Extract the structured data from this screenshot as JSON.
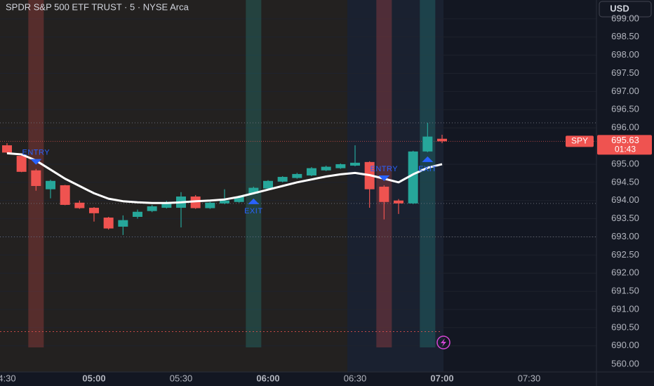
{
  "chart_data": {
    "type": "candlestick",
    "title": "SPDR S&P 500 ETF TRUST · 5 · NYSE Arca",
    "currency_button": "USD",
    "symbol": "SPY",
    "last_price": 695.63,
    "countdown": "01:43",
    "axis_break_label": "560.00",
    "up_color": "#26a69a",
    "down_color": "#ef5350",
    "ma_color": "#ffffff",
    "categories": [
      "4:30",
      null,
      null,
      null,
      null,
      null,
      "05:00",
      null,
      null,
      null,
      null,
      null,
      "05:30",
      null,
      null,
      null,
      null,
      null,
      "06:00",
      null,
      null,
      null,
      null,
      null,
      "06:30",
      null,
      null,
      null,
      null,
      null,
      "07:00",
      null,
      null,
      null,
      null,
      null,
      "07:30"
    ],
    "open": [
      695.52,
      695.23,
      694.83,
      694.31,
      694.42,
      693.94,
      693.8,
      693.53,
      693.28,
      693.55,
      693.71,
      693.8,
      693.8,
      694.11,
      693.79,
      693.92,
      693.96,
      694.19,
      694.33,
      694.52,
      694.62,
      694.69,
      694.83,
      694.89,
      694.96,
      695.06,
      694.38,
      694.0,
      693.92,
      695.35,
      695.7,
      null,
      null,
      null,
      null,
      null,
      null
    ],
    "high": [
      695.58,
      695.27,
      694.87,
      694.57,
      694.43,
      694.0,
      693.82,
      693.55,
      693.59,
      693.75,
      693.88,
      693.99,
      694.23,
      694.15,
      693.96,
      694.31,
      694.14,
      694.38,
      694.56,
      694.67,
      694.76,
      694.92,
      694.96,
      695.02,
      695.52,
      695.08,
      694.42,
      694.04,
      695.37,
      696.14,
      695.81,
      null,
      null,
      null,
      null,
      null,
      null
    ],
    "low": [
      695.3,
      694.78,
      694.27,
      694.06,
      693.87,
      693.77,
      693.42,
      693.2,
      693.05,
      693.5,
      693.68,
      693.78,
      693.26,
      693.77,
      693.77,
      693.9,
      693.94,
      694.17,
      694.31,
      694.5,
      694.6,
      694.67,
      694.81,
      694.87,
      694.94,
      693.8,
      693.48,
      693.63,
      693.9,
      695.33,
      695.58,
      null,
      null,
      null,
      null,
      null,
      null
    ],
    "close": [
      695.32,
      694.79,
      694.4,
      694.54,
      693.88,
      693.79,
      693.65,
      693.23,
      693.46,
      693.69,
      693.84,
      693.94,
      694.11,
      693.79,
      693.94,
      694.0,
      694.11,
      694.35,
      694.54,
      694.65,
      694.73,
      694.89,
      694.93,
      695.0,
      695.04,
      694.31,
      693.96,
      693.92,
      695.35,
      695.76,
      695.63,
      null,
      null,
      null,
      null,
      null,
      null
    ],
    "ma": [
      695.3,
      695.27,
      695.1,
      694.85,
      694.6,
      694.4,
      694.2,
      694.05,
      693.98,
      693.95,
      693.93,
      693.93,
      693.95,
      693.98,
      694.0,
      694.03,
      694.1,
      694.2,
      694.3,
      694.4,
      694.5,
      694.58,
      694.66,
      694.72,
      694.76,
      694.7,
      694.6,
      694.5,
      694.72,
      694.9,
      695.0,
      null,
      null,
      null,
      null,
      null,
      null
    ],
    "signals": [
      {
        "label": "ENTRY",
        "index": 2,
        "color": "#ef5350"
      },
      {
        "label": "EXIT",
        "index": 17,
        "color": "#26a69a"
      },
      {
        "label": "ENTRY",
        "index": 26,
        "color": "#ef5350"
      },
      {
        "label": "EXIT",
        "index": 29,
        "color": "#26a69a"
      }
    ],
    "dotted_levels": [
      696.14,
      693.92,
      693.0
    ],
    "bottom_line_level": 690.39,
    "ylim": [
      689.28,
      699.52
    ],
    "yticks": [
      {
        "value": 699,
        "label": "699.00"
      },
      {
        "value": 698.5,
        "label": "698.50"
      },
      {
        "value": 698,
        "label": "698.00"
      },
      {
        "value": 697.5,
        "label": "697.50"
      },
      {
        "value": 697,
        "label": "697.00"
      },
      {
        "value": 696.5,
        "label": "696.50"
      },
      {
        "value": 696,
        "label": "696.00"
      },
      {
        "value": 695,
        "label": "695.00"
      },
      {
        "value": 694.5,
        "label": "694.50"
      },
      {
        "value": 694,
        "label": "694.00"
      },
      {
        "value": 693.5,
        "label": "693.50"
      },
      {
        "value": 693,
        "label": "693.00"
      },
      {
        "value": 692.5,
        "label": "692.50"
      },
      {
        "value": 692,
        "label": "692.00"
      },
      {
        "value": 691.5,
        "label": "691.50"
      },
      {
        "value": 691,
        "label": "691.00"
      },
      {
        "value": 690.5,
        "label": "690.50"
      },
      {
        "value": 690,
        "label": "690.00"
      }
    ],
    "grid": true
  }
}
